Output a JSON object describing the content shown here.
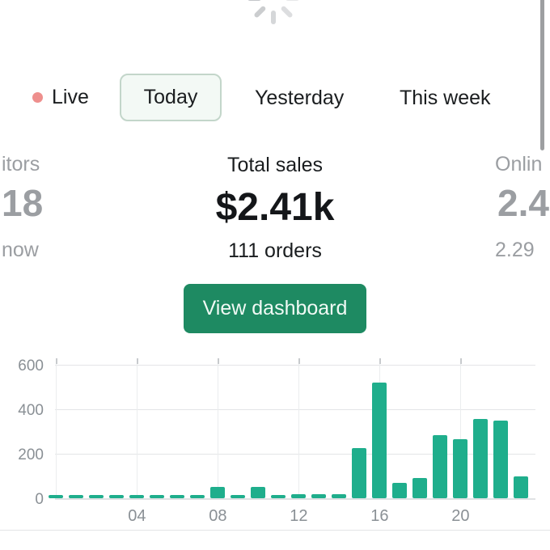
{
  "loading": {
    "spinner_icon": "circular-segment-spinner"
  },
  "tabs": {
    "live_label": "Live",
    "live_dot_icon": "red-status-dot",
    "today_label": "Today",
    "yesterday_label": "Yesterday",
    "this_week_label": "This week",
    "selected": "Today"
  },
  "stats": {
    "visitors": {
      "label_fragment": "itors",
      "value_fragment": "18",
      "sub_fragment": "now"
    },
    "total_sales": {
      "label": "Total sales",
      "value": "$2.41k",
      "sub": "111 orders"
    },
    "online": {
      "label_fragment": "Onlin",
      "value_fragment": "2.4",
      "sub_fragment": "2.29"
    }
  },
  "actions": {
    "view_dashboard_label": "View dashboard"
  },
  "colors": {
    "accent_green": "#1e8a62",
    "bar_teal": "#1fae8c",
    "live_dot": "#ee8f8d",
    "selected_tab_bg": "#f3f9f5",
    "selected_tab_border": "#c3d6ca",
    "muted_text": "#9b9ea2",
    "dark_text": "#1a1d1f",
    "axis_text": "#8a9095",
    "gridline": "#e4e5e7"
  },
  "chart_data": {
    "type": "bar",
    "title": "",
    "xlabel": "",
    "ylabel": "",
    "categories": [
      "00",
      "01",
      "02",
      "03",
      "04",
      "05",
      "06",
      "07",
      "08",
      "09",
      "10",
      "11",
      "12",
      "13",
      "14",
      "15",
      "16",
      "17",
      "18",
      "19",
      "20",
      "21",
      "22",
      "23"
    ],
    "values": [
      15,
      15,
      15,
      15,
      15,
      15,
      15,
      15,
      50,
      15,
      50,
      15,
      18,
      20,
      18,
      225,
      520,
      70,
      90,
      285,
      265,
      355,
      350,
      100
    ],
    "x_tick_labels": [
      "04",
      "08",
      "12",
      "16",
      "20"
    ],
    "x_tick_hours": [
      4,
      8,
      12,
      16,
      20
    ],
    "vgrid_hours": [
      0,
      4,
      8,
      12,
      16,
      20
    ],
    "y_ticks": [
      0,
      200,
      400,
      600
    ],
    "ylim": [
      0,
      600
    ],
    "grid": true,
    "legend": "none",
    "bar_color": "#1fae8c"
  }
}
